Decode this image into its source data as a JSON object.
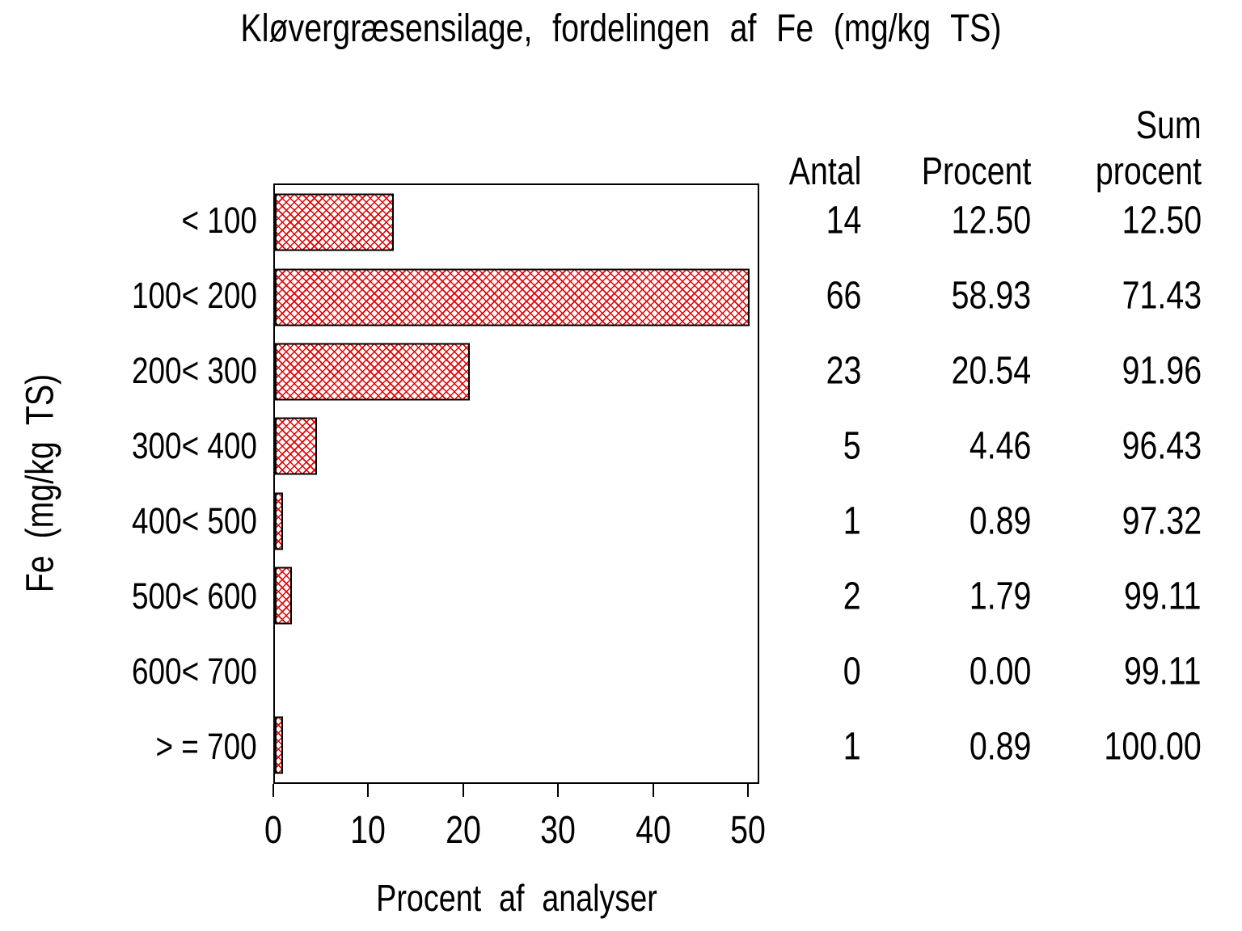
{
  "chart_data": {
    "type": "bar",
    "orientation": "horizontal",
    "title": "Kløvergræsensilage, fordelingen af Fe (mg/kg TS)",
    "xlabel": "Procent af analyser",
    "ylabel": "Fe (mg/kg TS)",
    "xlim": [
      0,
      50
    ],
    "xticks": [
      "0",
      "10",
      "20",
      "30",
      "40",
      "50"
    ],
    "grid": "off",
    "bar_style": {
      "hatch": "diagonal-crosshatch",
      "hatch_color": "#e60000",
      "border_color": "#000000",
      "note": "bars longer than axis max 50 are clipped at 50"
    },
    "categories": [
      "< 100",
      "100< 200",
      "200< 300",
      "300< 400",
      "400< 500",
      "500< 600",
      "600< 700",
      "> = 700"
    ],
    "series": [
      {
        "name": "Procent af analyser",
        "values": [
          12.5,
          58.93,
          20.54,
          4.46,
          0.89,
          1.79,
          0.0,
          0.89
        ]
      }
    ],
    "table": {
      "header": {
        "col1_line2": "Antal",
        "col2_line2": "Procent",
        "col3_line1": "Sum",
        "col3_line2": "procent"
      },
      "rows": [
        {
          "antal": "14",
          "procent": "12.50",
          "sum_procent": "12.50"
        },
        {
          "antal": "66",
          "procent": "58.93",
          "sum_procent": "71.43"
        },
        {
          "antal": "23",
          "procent": "20.54",
          "sum_procent": "91.96"
        },
        {
          "antal": "5",
          "procent": "4.46",
          "sum_procent": "96.43"
        },
        {
          "antal": "1",
          "procent": "0.89",
          "sum_procent": "97.32"
        },
        {
          "antal": "2",
          "procent": "1.79",
          "sum_procent": "99.11"
        },
        {
          "antal": "0",
          "procent": "0.00",
          "sum_procent": "99.11"
        },
        {
          "antal": "1",
          "procent": "0.89",
          "sum_procent": "100.00"
        }
      ]
    }
  }
}
